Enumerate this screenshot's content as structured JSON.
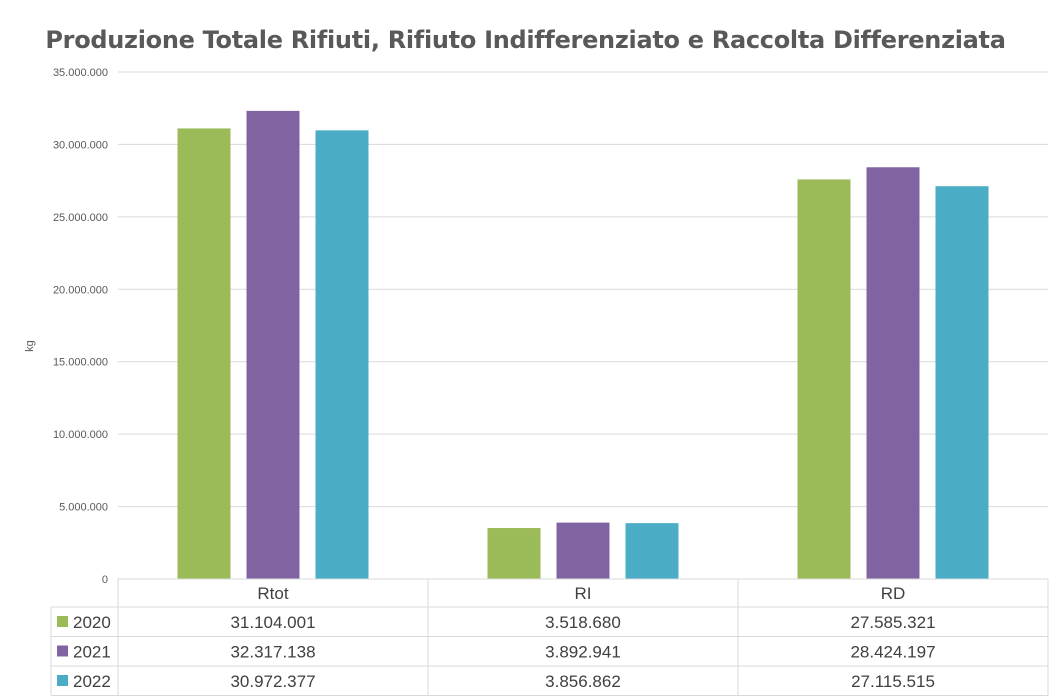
{
  "chart_data": {
    "type": "bar",
    "title": "Produzione Totale Rifiuti, Rifiuto Indifferenziato e Raccolta Differenziata",
    "ylabel": "kg",
    "xlabel": "",
    "categories": [
      "Rtot",
      "RI",
      "RD"
    ],
    "ylim": [
      0,
      35000000
    ],
    "yticks": [
      "0",
      "5.000.000",
      "10.000.000",
      "15.000.000",
      "20.000.000",
      "25.000.000",
      "30.000.000",
      "35.000.000"
    ],
    "grid": true,
    "legend": "data-table",
    "series": [
      {
        "name": "2020",
        "color": "#9bbb59",
        "values": [
          31104001,
          3518680,
          27585321
        ],
        "labels": [
          "31.104.001",
          "3.518.680",
          "27.585.321"
        ]
      },
      {
        "name": "2021",
        "color": "#8064a2",
        "values": [
          32317138,
          3892941,
          28424197
        ],
        "labels": [
          "32.317.138",
          "3.892.941",
          "28.424.197"
        ]
      },
      {
        "name": "2022",
        "color": "#4bacc6",
        "values": [
          30972377,
          3856862,
          27115515
        ],
        "labels": [
          "30.972.377",
          "3.856.862",
          "27.115.515"
        ]
      }
    ]
  }
}
